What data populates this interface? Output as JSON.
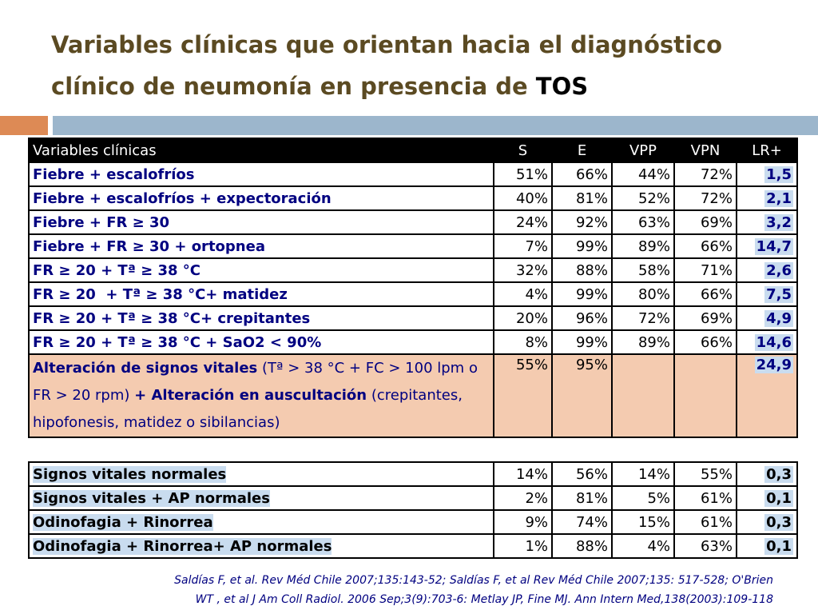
{
  "title": {
    "line1": "Variables clínicas que orientan hacia el diagnóstico",
    "line2": "clínico de neumonía en presencia de",
    "highlight": "TOS"
  },
  "header": {
    "var": "Variables clínicas",
    "s": "S",
    "e": "E",
    "vpp": "VPP",
    "vpn": "VPN",
    "lr": "LR+"
  },
  "rows": [
    {
      "var": "Fiebre + escalofríos",
      "s": "51%",
      "e": "66%",
      "vpp": "44%",
      "vpn": "72%",
      "lr": "1,5"
    },
    {
      "var": "Fiebre + escalofríos + expectoración",
      "s": "40%",
      "e": "81%",
      "vpp": "52%",
      "vpn": "72%",
      "lr": "2,1"
    },
    {
      "var": "Fiebre + FR ≥ 30",
      "s": "24%",
      "e": "92%",
      "vpp": "63%",
      "vpn": "69%",
      "lr": "3,2"
    },
    {
      "var": "Fiebre + FR ≥ 30 + ortopnea",
      "s": "7%",
      "e": "99%",
      "vpp": "89%",
      "vpn": "66%",
      "lr": "14,7"
    },
    {
      "var": "FR ≥ 20 + Tª ≥ 38 °C",
      "s": "32%",
      "e": "88%",
      "vpp": "58%",
      "vpn": "71%",
      "lr": "2,6"
    },
    {
      "var": "FR ≥ 20  + Tª ≥ 38 °C+ matidez",
      "s": "4%",
      "e": "99%",
      "vpp": "80%",
      "vpn": "66%",
      "lr": "7,5"
    },
    {
      "var": "FR ≥ 20 + Tª ≥ 38 °C+ crepitantes",
      "s": "20%",
      "e": "96%",
      "vpp": "72%",
      "vpn": "69%",
      "lr": "4,9"
    },
    {
      "var": "FR ≥ 20 + Tª ≥ 38 °C + SaO2 < 90%",
      "s": "8%",
      "e": "99%",
      "vpp": "89%",
      "vpn": "66%",
      "lr": "14,6"
    }
  ],
  "special_row": {
    "part1_bold": "Alteración de signos vitales",
    "part2": " (Tª > 38 °C + FC > 100 lpm o FR > 20 rpm) ",
    "part3_bold": "+ Alteración en auscultación",
    "part4": " (crepitantes, hipofonesis, matidez o sibilancias)",
    "s": "55%",
    "e": "95%",
    "vpp": "",
    "vpn": "",
    "lr": "24,9"
  },
  "rows2": [
    {
      "var": "Signos vitales normales",
      "s": "14%",
      "e": "56%",
      "vpp": "14%",
      "vpn": "55%",
      "lr": "0,3"
    },
    {
      "var": "Signos vitales + AP normales",
      "s": "2%",
      "e": "81%",
      "vpp": "5%",
      "vpn": "61%",
      "lr": "0,1"
    },
    {
      "var": "Odinofagia + Rinorrea",
      "s": "9%",
      "e": "74%",
      "vpp": "15%",
      "vpn": "61%",
      "lr": "0,3"
    },
    {
      "var": "Odinofagia + Rinorrea+ AP normales",
      "s": "1%",
      "e": "88%",
      "vpp": "4%",
      "vpn": "63%",
      "lr": "0,1"
    }
  ],
  "citation": {
    "line1": "Saldías F, et al. Rev Méd Chile 2007;135:143-52; Saldías F, et al Rev Méd Chile 2007;135: 517-528;  O'Brien",
    "line2": "WT , et al J Am Coll Radiol. 2006 Sep;3(9):703-6: Metlay JP, Fine MJ. Ann Intern Med,138(2003):109-118"
  },
  "colors": {
    "title": "#5b4a22",
    "accent_orange": "#dd8a55",
    "accent_blue": "#9cb6cc",
    "row_highlight": "#f4cbb0",
    "text_blue": "#000080"
  }
}
